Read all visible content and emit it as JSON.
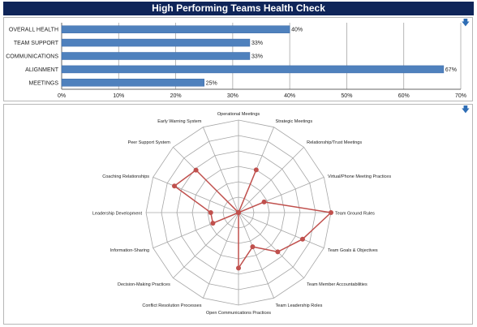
{
  "header": {
    "title": "High Performing Teams Health Check"
  },
  "icons": {
    "expand": "download-arrow-icon"
  },
  "colors": {
    "title_bg": "#0f2559",
    "bar": "#4f81bd",
    "radar": "#c0504d",
    "grid": "#999999"
  },
  "chart_data": [
    {
      "type": "bar",
      "orientation": "horizontal",
      "categories": [
        "OVERALL HEALTH",
        "TEAM SUPPORT",
        "COMMUNICATIONS",
        "ALIGNMENT",
        "MEETINGS"
      ],
      "values": [
        40,
        33,
        33,
        67,
        25
      ],
      "data_labels": [
        "40%",
        "33%",
        "33%",
        "67%",
        "25%"
      ],
      "xlim": [
        0,
        70
      ],
      "x_ticks": [
        "0%",
        "10%",
        "20%",
        "30%",
        "40%",
        "50%",
        "60%",
        "70%"
      ],
      "grid": true
    },
    {
      "type": "radar",
      "categories": [
        "Operational Meetings",
        "Strategic Meetings",
        "Relationship/Trust Meetings",
        "Virtual/Phone Meeting Practices",
        "Team Ground Rules",
        "Team Goals & Objectives",
        "Team Member Accountabilities",
        "Team Leadership Roles",
        "Open Communications Practices",
        "Conflict Resolution Processes",
        "Decision-Making Practices",
        "Information-Sharing",
        "Leadership Development",
        "Coaching Relationships",
        "Peer Support System",
        "Early Warning System"
      ],
      "values": [
        0.0,
        0.5,
        0.0,
        0.3,
        1.0,
        0.75,
        0.6,
        0.4,
        0.6,
        0.0,
        0.0,
        0.3,
        0.3,
        0.75,
        0.65,
        0.0
      ],
      "rlim": [
        0,
        1
      ],
      "rings": 6,
      "grid": true
    }
  ]
}
